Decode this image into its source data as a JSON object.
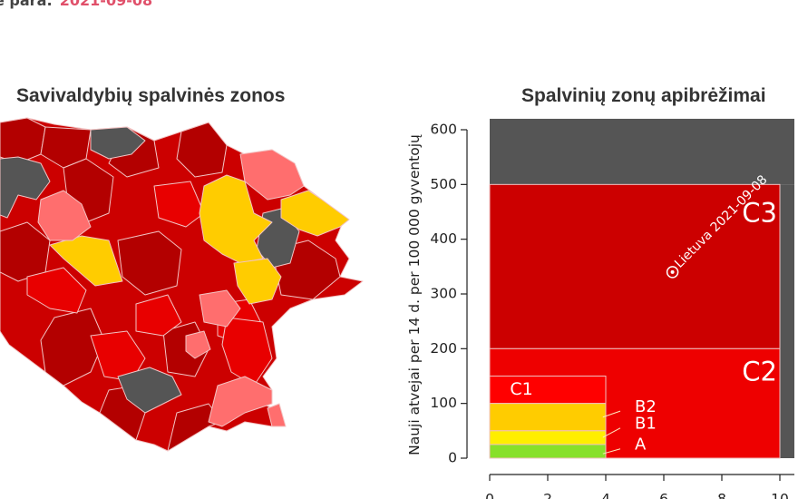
{
  "header": {
    "label": "e para:",
    "date": "2021-09-08"
  },
  "map": {
    "title": "Savivaldybių spalvinės zonos"
  },
  "colors": {
    "A": "#88e02a",
    "B1": "#ffee00",
    "B2": "#ffcc00",
    "C1": "#ff0000",
    "C2": "#ee0000",
    "C3": "#cc0000",
    "D": "#555555",
    "light_red": "#ff6e6e",
    "zone_outline": "#f0c0c0"
  },
  "chart_data": {
    "type": "area",
    "title": "Spalvinių zonų apibrėžimai",
    "ylabel": "Nauji atvejai per 14 d. per 100 000 gyventojų",
    "xlabel": "",
    "xlim": [
      0,
      10.5
    ],
    "ylim": [
      0,
      600
    ],
    "x_ticks": [
      0,
      2,
      4,
      6,
      8,
      10
    ],
    "y_ticks": [
      0,
      100,
      200,
      300,
      400,
      500,
      600
    ],
    "grid": false,
    "zones": [
      {
        "name": "D",
        "x": [
          0,
          10.5
        ],
        "y": [
          500,
          620
        ]
      },
      {
        "name": "D",
        "x": [
          10,
          10.5
        ],
        "y": [
          0,
          500
        ]
      },
      {
        "name": "C3",
        "x": [
          0,
          10
        ],
        "y": [
          200,
          500
        ]
      },
      {
        "name": "C2",
        "x": [
          0,
          10
        ],
        "y": [
          0,
          200
        ]
      },
      {
        "name": "C1",
        "x": [
          0,
          4
        ],
        "y": [
          100,
          150
        ]
      },
      {
        "name": "B2",
        "x": [
          0,
          4
        ],
        "y": [
          50,
          100
        ]
      },
      {
        "name": "B1",
        "x": [
          0,
          4
        ],
        "y": [
          25,
          50
        ]
      },
      {
        "name": "A",
        "x": [
          0,
          4
        ],
        "y": [
          0,
          25
        ]
      }
    ],
    "zone_labels": [
      {
        "text": "C3",
        "x": 9.3,
        "y": 445
      },
      {
        "text": "C2",
        "x": 9.3,
        "y": 155
      },
      {
        "text": "C1",
        "x": 0.7,
        "y": 125
      },
      {
        "text": "B2",
        "x": 5.0,
        "y": 93
      },
      {
        "text": "B1",
        "x": 5.0,
        "y": 62
      },
      {
        "text": "A",
        "x": 5.0,
        "y": 24
      }
    ],
    "pointers": [
      {
        "from": [
          4.5,
          86
        ],
        "to": [
          3.9,
          75
        ]
      },
      {
        "from": [
          4.5,
          55
        ],
        "to": [
          3.9,
          38
        ]
      },
      {
        "from": [
          4.5,
          17
        ],
        "to": [
          3.9,
          8
        ]
      }
    ],
    "points": [
      {
        "label": "Lietuva 2021-09-08",
        "x": 6.3,
        "y": 340
      }
    ]
  }
}
